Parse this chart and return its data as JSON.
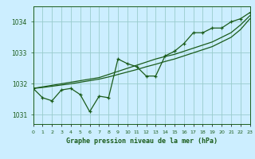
{
  "hours": [
    0,
    1,
    2,
    3,
    4,
    5,
    6,
    7,
    8,
    9,
    10,
    11,
    12,
    13,
    14,
    15,
    16,
    17,
    18,
    19,
    20,
    21,
    22,
    23
  ],
  "pressure_main": [
    1031.85,
    1031.55,
    1031.45,
    1031.8,
    1031.85,
    1031.65,
    1031.1,
    1031.6,
    1031.55,
    1032.8,
    1032.65,
    1032.55,
    1032.25,
    1032.25,
    1032.9,
    1033.05,
    1033.3,
    1033.65,
    1033.65,
    1033.8,
    1033.8,
    1034.0,
    1034.1,
    1034.3
  ],
  "pressure_line1": [
    1031.85,
    1031.9,
    1031.95,
    1032.0,
    1032.05,
    1032.1,
    1032.15,
    1032.2,
    1032.3,
    1032.4,
    1032.5,
    1032.6,
    1032.7,
    1032.8,
    1032.88,
    1032.95,
    1033.05,
    1033.15,
    1033.25,
    1033.35,
    1033.5,
    1033.65,
    1033.9,
    1034.2
  ],
  "pressure_line2": [
    1031.85,
    1031.88,
    1031.92,
    1031.96,
    1032.0,
    1032.05,
    1032.1,
    1032.15,
    1032.22,
    1032.3,
    1032.38,
    1032.46,
    1032.55,
    1032.63,
    1032.72,
    1032.8,
    1032.9,
    1033.0,
    1033.1,
    1033.2,
    1033.35,
    1033.5,
    1033.75,
    1034.1
  ],
  "bg_color": "#cceeff",
  "line_color": "#1a5c1a",
  "grid_color": "#99cccc",
  "title": "Graphe pression niveau de la mer (hPa)",
  "ylabel_ticks": [
    1031,
    1032,
    1033,
    1034
  ],
  "xlim": [
    0,
    23
  ],
  "ylim": [
    1030.7,
    1034.5
  ]
}
